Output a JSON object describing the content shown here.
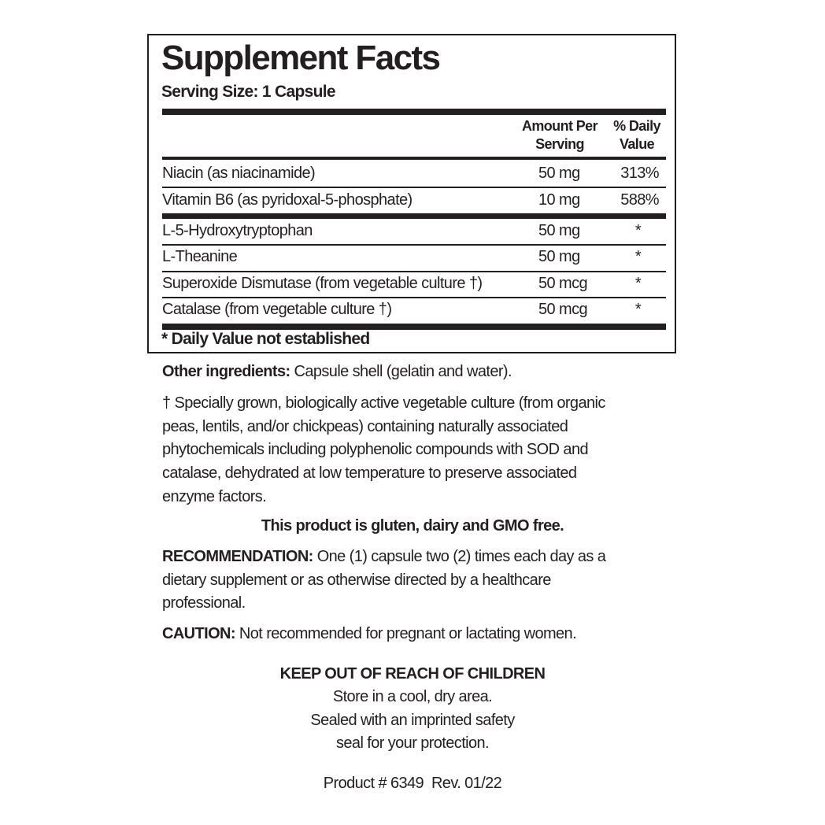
{
  "facts": {
    "title": "Supplement Facts",
    "serving_size": "Serving Size: 1 Capsule",
    "header_amount": [
      "Amount Per",
      "Serving"
    ],
    "header_dv": [
      "% Daily",
      "Value"
    ],
    "rows": [
      {
        "name": "Niacin (as niacinamide)",
        "amount": "50 mg",
        "dv": "313%"
      },
      {
        "name": "Vitamin B6 (as pyridoxal-5-phosphate)",
        "amount": "10 mg",
        "dv": "588%"
      },
      {
        "name": "L-5-Hydroxytryptophan",
        "amount": "50 mg",
        "dv": "*"
      },
      {
        "name": "L-Theanine",
        "amount": "50 mg",
        "dv": "*"
      },
      {
        "name": "Superoxide Dismutase (from vegetable culture †)",
        "amount": "50 mcg",
        "dv": "*"
      },
      {
        "name": "Catalase (from vegetable culture †)",
        "amount": "50 mcg",
        "dv": "*"
      }
    ],
    "footnote": "* Daily Value not established"
  },
  "other": {
    "label": "Other ingredients:",
    "text": " Capsule shell (gelatin and water)."
  },
  "dagger_lines": [
    "† Specially grown, biologically active vegetable culture (from organic",
    "peas, lentils, and/or chickpeas) containing naturally associated",
    "phytochemicals including polyphenolic compounds with SOD and",
    "catalase, dehydrated at low temperature to preserve associated",
    "enzyme factors."
  ],
  "free_statement": "This product is gluten, dairy and GMO free.",
  "recommendation": {
    "label": "RECOMMENDATION:",
    "lines": [
      " One (1) capsule two (2) times each day as a",
      "dietary supplement or as otherwise directed by a healthcare",
      "professional."
    ]
  },
  "caution": {
    "label": "CAUTION:",
    "text": " Not recommended for pregnant or lactating women."
  },
  "keep_out": "KEEP OUT OF REACH OF CHILDREN",
  "storage_lines": [
    "Store in a cool, dry area.",
    "Sealed with an imprinted safety",
    "seal for your protection."
  ],
  "product_line": "Product # 6349  Rev. 01/22"
}
